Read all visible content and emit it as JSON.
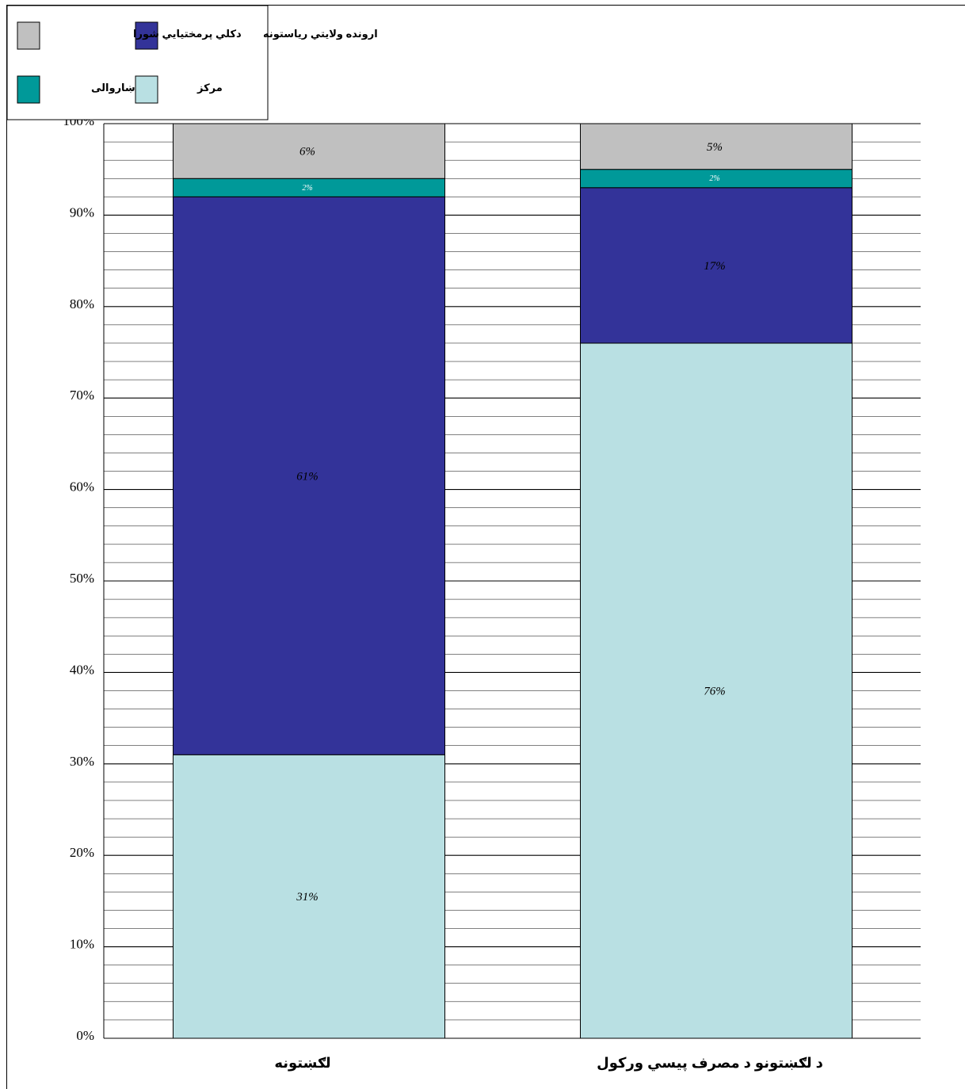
{
  "chart_data": {
    "type": "bar",
    "stacked": true,
    "percent": true,
    "categories": [
      "لګښتونه",
      "د لګښتونو د مصرف پیسي ورکول"
    ],
    "series": [
      {
        "name": "مرکز",
        "values": [
          31,
          76
        ],
        "labels": [
          "31%",
          "76%"
        ],
        "color": "#b9e0e3",
        "label_color": "#000000"
      },
      {
        "name": "ارونده ولایتي ریاستونه",
        "values": [
          61,
          17
        ],
        "labels": [
          "61%",
          "17%"
        ],
        "color": "#333399",
        "label_color": "#000000"
      },
      {
        "name": "ښاروالی",
        "values": [
          2,
          2
        ],
        "labels": [
          "2%",
          "2%"
        ],
        "color": "#009999",
        "label_color": "#ffffff"
      },
      {
        "name": "دکلي پرمختيايي شورا",
        "values": [
          6,
          5
        ],
        "labels": [
          "6%",
          "5%"
        ],
        "color": "#c0c0c0",
        "label_color": "#000000"
      }
    ],
    "y_ticks": [
      "0%",
      "10%",
      "20%",
      "30%",
      "40%",
      "50%",
      "60%",
      "70%",
      "80%",
      "90%",
      "100%"
    ],
    "ylim": [
      0,
      100
    ],
    "grid": true,
    "legend_position": "top-left"
  }
}
